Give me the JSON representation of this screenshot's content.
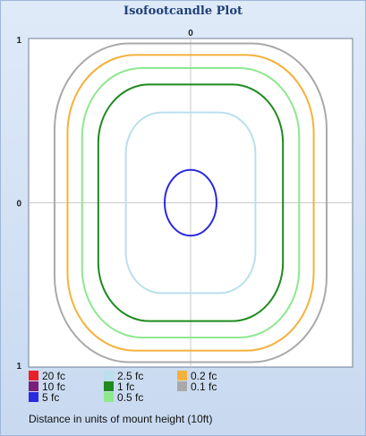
{
  "chart_data": {
    "type": "contour",
    "title": "Isofootcandle Plot",
    "x_tick_label": "0",
    "y_tick_labels": [
      "1",
      "0",
      "1"
    ],
    "xlim": [
      -1,
      1
    ],
    "ylim": [
      -1,
      1
    ],
    "grid": "crosshair at origin",
    "legend_position": "bottom",
    "series": [
      {
        "name": "20 fc",
        "color": "#e8202a",
        "shape": "none",
        "extent": {
          "x": 0,
          "y": 0
        }
      },
      {
        "name": "10 fc",
        "color": "#7b1f7a",
        "shape": "none",
        "extent": {
          "x": 0,
          "y": 0
        }
      },
      {
        "name": "5 fc",
        "color": "#2a2ae0",
        "shape": "circle",
        "extent": {
          "x": 0.16,
          "y": 0.2
        }
      },
      {
        "name": "2.5 fc",
        "color": "#b9e0ec",
        "shape": "roundrect",
        "extent": {
          "x": 0.4,
          "y": 0.55
        }
      },
      {
        "name": "1 fc",
        "color": "#1f8a1f",
        "shape": "roundrect",
        "extent": {
          "x": 0.57,
          "y": 0.72
        }
      },
      {
        "name": "0.5 fc",
        "color": "#8ee88e",
        "shape": "roundrect",
        "extent": {
          "x": 0.67,
          "y": 0.82
        }
      },
      {
        "name": "0.2 fc",
        "color": "#f5b13c",
        "shape": "roundrect",
        "extent": {
          "x": 0.76,
          "y": 0.9
        }
      },
      {
        "name": "0.1 fc",
        "color": "#a9a9a9",
        "shape": "roundrect",
        "extent": {
          "x": 0.84,
          "y": 0.97
        }
      }
    ],
    "note": "Distance in units of mount height (10ft)"
  }
}
